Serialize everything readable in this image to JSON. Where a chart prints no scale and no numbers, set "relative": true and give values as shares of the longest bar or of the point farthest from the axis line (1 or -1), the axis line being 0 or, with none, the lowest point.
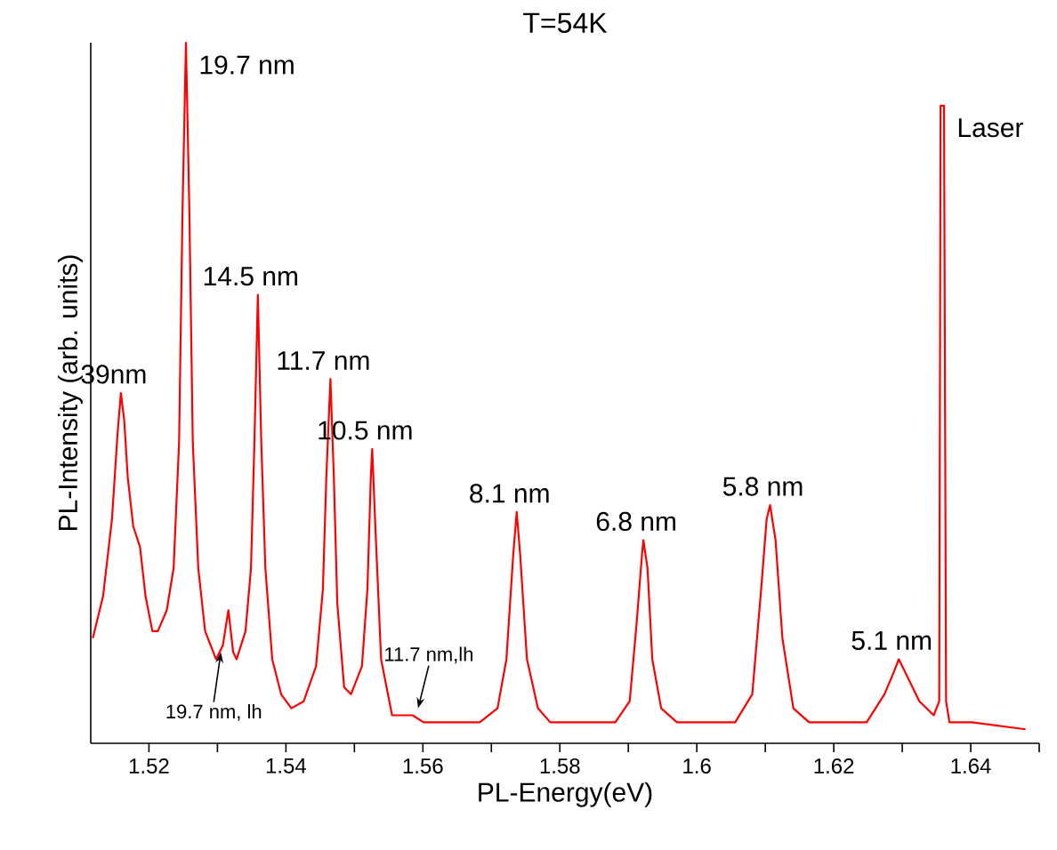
{
  "chart_data": {
    "type": "line",
    "title": "T=54K",
    "xlabel": "PL-Energy(eV)",
    "ylabel": "PL-Intensity (arb. units)",
    "relative": true,
    "xlim": [
      1.5115,
      1.65
    ],
    "xticks": [
      1.52,
      {
        "value": 1.53,
        "label": null
      },
      1.54,
      {
        "value": 1.55,
        "label": null
      },
      1.56,
      {
        "value": 1.57,
        "label": null
      },
      1.58,
      {
        "value": 1.59,
        "label": null
      },
      1.6,
      {
        "value": 1.61,
        "label": null
      },
      1.62,
      {
        "value": 1.63,
        "label": null
      },
      1.64,
      {
        "value": 1.65,
        "label": null
      }
    ],
    "x": [
      1.5118,
      1.5133,
      1.5146,
      1.5154,
      1.5159,
      1.5164,
      1.5169,
      1.5177,
      1.5187,
      1.5195,
      1.5205,
      1.5213,
      1.5226,
      1.5236,
      1.5244,
      1.5249,
      1.5254,
      1.5259,
      1.5264,
      1.5272,
      1.5282,
      1.5298,
      1.5308,
      1.5316,
      1.5323,
      1.5328,
      1.5341,
      1.5349,
      1.5354,
      1.5359,
      1.5364,
      1.537,
      1.538,
      1.5393,
      1.5408,
      1.5426,
      1.5444,
      1.5454,
      1.5459,
      1.5465,
      1.547,
      1.5475,
      1.5485,
      1.5495,
      1.5511,
      1.5519,
      1.5524,
      1.5526,
      1.5531,
      1.5539,
      1.5555,
      1.5575,
      1.5585,
      1.5601,
      1.5632,
      1.5662,
      1.5683,
      1.5709,
      1.5722,
      1.5732,
      1.5737,
      1.5742,
      1.5752,
      1.5768,
      1.5786,
      1.5881,
      1.5902,
      1.5912,
      1.592,
      1.5922,
      1.5928,
      1.5935,
      1.5948,
      1.5971,
      1.6056,
      1.6081,
      1.6094,
      1.6102,
      1.6107,
      1.6115,
      1.6125,
      1.6141,
      1.6164,
      1.6248,
      1.6274,
      1.6287,
      1.6295,
      1.6305,
      1.6325,
      1.6346,
      1.6354,
      1.6356,
      1.6361,
      1.6364,
      1.6369,
      1.6402,
      1.648
    ],
    "series": [
      {
        "color": "#ff0000",
        "values": [
          0.15,
          0.21,
          0.32,
          0.44,
          0.5,
          0.46,
          0.38,
          0.31,
          0.28,
          0.21,
          0.16,
          0.16,
          0.19,
          0.25,
          0.43,
          0.76,
          1.0,
          0.76,
          0.43,
          0.25,
          0.16,
          0.12,
          0.14,
          0.19,
          0.13,
          0.12,
          0.16,
          0.25,
          0.43,
          0.64,
          0.43,
          0.25,
          0.12,
          0.07,
          0.05,
          0.06,
          0.11,
          0.22,
          0.38,
          0.52,
          0.38,
          0.2,
          0.08,
          0.07,
          0.11,
          0.22,
          0.38,
          0.42,
          0.3,
          0.12,
          0.04,
          0.04,
          0.04,
          0.03,
          0.03,
          0.03,
          0.03,
          0.05,
          0.12,
          0.27,
          0.33,
          0.27,
          0.12,
          0.05,
          0.03,
          0.03,
          0.06,
          0.17,
          0.27,
          0.29,
          0.25,
          0.12,
          0.05,
          0.03,
          0.03,
          0.07,
          0.22,
          0.32,
          0.34,
          0.29,
          0.15,
          0.05,
          0.03,
          0.03,
          0.07,
          0.1,
          0.12,
          0.1,
          0.06,
          0.04,
          0.06,
          0.91,
          0.91,
          0.06,
          0.03,
          0.03,
          0.02
        ]
      }
    ],
    "annotations": [
      {
        "text": "39nm",
        "x": 1.5159,
        "y": 0.5
      },
      {
        "text": "19.7 nm",
        "x": 1.5254,
        "y": 1.0
      },
      {
        "text": "14.5 nm",
        "x": 1.5359,
        "y": 0.64
      },
      {
        "text": "11.7 nm",
        "x": 1.5465,
        "y": 0.52
      },
      {
        "text": "10.5 nm",
        "x": 1.5526,
        "y": 0.42
      },
      {
        "text": "8.1 nm",
        "x": 1.5737,
        "y": 0.33
      },
      {
        "text": "6.8 nm",
        "x": 1.5922,
        "y": 0.29
      },
      {
        "text": "5.8 nm",
        "x": 1.6107,
        "y": 0.34
      },
      {
        "text": "5.1 nm",
        "x": 1.6295,
        "y": 0.12
      },
      {
        "text": "Laser",
        "x": 1.6361,
        "y": 0.91
      },
      {
        "text": "19.7 nm, lh",
        "x": 1.5305,
        "y": 0.13
      },
      {
        "text": "11.7 nm,lh",
        "x": 1.5593,
        "y": 0.05
      }
    ]
  }
}
